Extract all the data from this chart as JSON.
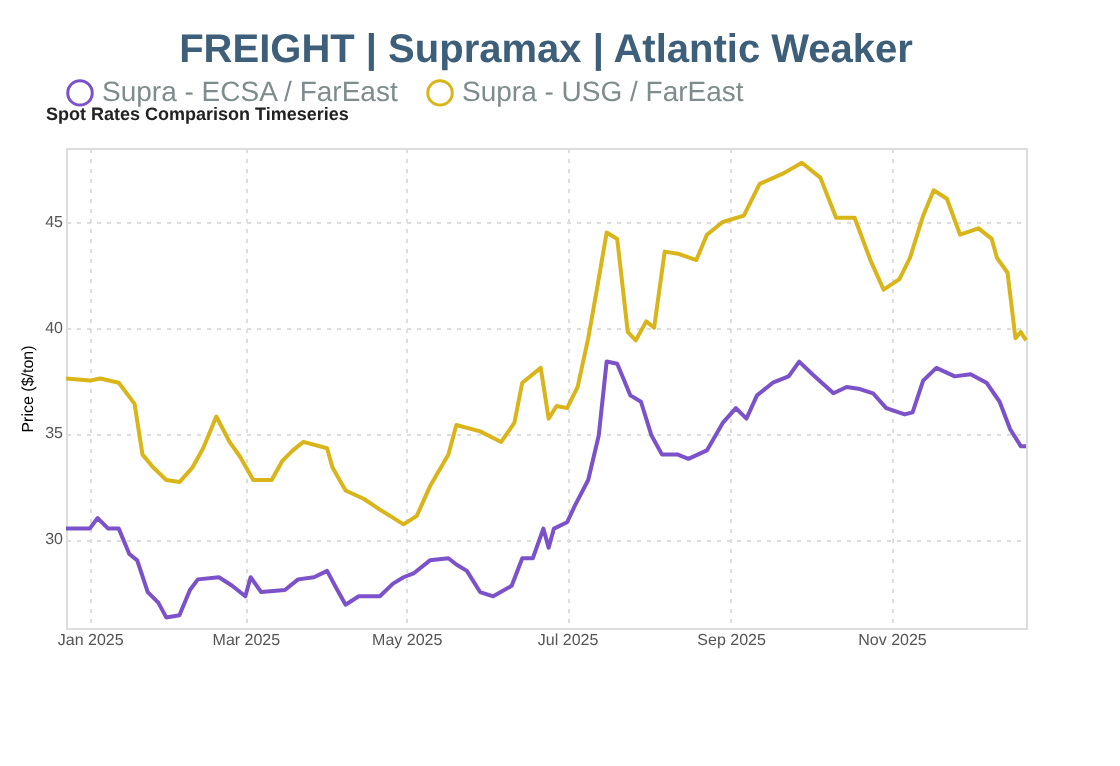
{
  "chart_data": {
    "type": "line",
    "title": "FREIGHT | Supramax | Atlantic Weaker",
    "subtitle": "Spot Rates Comparison Timeseries",
    "ylabel": "Price ($/ton)",
    "xlim": [
      "2024-12-23",
      "2025-12-22"
    ],
    "ylim": [
      25.8,
      48.5
    ],
    "yticks": [
      30,
      35,
      40,
      45
    ],
    "xticks": [
      {
        "value": "2025-01-01",
        "label": "Jan 2025"
      },
      {
        "value": "2025-03-01",
        "label": "Mar 2025"
      },
      {
        "value": "2025-05-01",
        "label": "May 2025"
      },
      {
        "value": "2025-07-01",
        "label": "Jul 2025"
      },
      {
        "value": "2025-09-01",
        "label": "Sep 2025"
      },
      {
        "value": "2025-11-01",
        "label": "Nov 2025"
      }
    ],
    "grid": true,
    "legend": "top",
    "marker": "none",
    "line_style": "solid",
    "series": [
      {
        "name": "Supra - ECSA / FarEast",
        "color": "#7b52c9",
        "x": [
          "2024-12-23",
          "2025-01-01",
          "2025-01-04",
          "2025-01-08",
          "2025-01-12",
          "2025-01-16",
          "2025-01-19",
          "2025-01-23",
          "2025-01-27",
          "2025-01-30",
          "2025-02-04",
          "2025-02-08",
          "2025-02-11",
          "2025-02-19",
          "2025-02-24",
          "2025-03-01",
          "2025-03-03",
          "2025-03-07",
          "2025-03-16",
          "2025-03-21",
          "2025-03-27",
          "2025-04-01",
          "2025-04-04",
          "2025-04-08",
          "2025-04-13",
          "2025-04-21",
          "2025-04-26",
          "2025-04-30",
          "2025-05-04",
          "2025-05-10",
          "2025-05-17",
          "2025-05-20",
          "2025-05-24",
          "2025-05-29",
          "2025-06-03",
          "2025-06-10",
          "2025-06-14",
          "2025-06-18",
          "2025-06-22",
          "2025-06-24",
          "2025-06-26",
          "2025-07-01",
          "2025-07-04",
          "2025-07-09",
          "2025-07-13",
          "2025-07-16",
          "2025-07-20",
          "2025-07-25",
          "2025-07-29",
          "2025-08-02",
          "2025-08-06",
          "2025-08-12",
          "2025-08-16",
          "2025-08-23",
          "2025-08-29",
          "2025-09-03",
          "2025-09-07",
          "2025-09-11",
          "2025-09-17",
          "2025-09-23",
          "2025-09-27",
          "2025-10-02",
          "2025-10-10",
          "2025-10-15",
          "2025-10-20",
          "2025-10-25",
          "2025-10-30",
          "2025-11-06",
          "2025-11-09",
          "2025-11-13",
          "2025-11-18",
          "2025-11-25",
          "2025-12-01",
          "2025-12-07",
          "2025-12-12",
          "2025-12-16",
          "2025-12-20",
          "2025-12-22"
        ],
        "values": [
          30.5,
          30.5,
          31.0,
          30.5,
          30.5,
          29.3,
          29.0,
          27.5,
          27.0,
          26.3,
          26.4,
          27.6,
          28.1,
          28.2,
          27.8,
          27.3,
          28.2,
          27.5,
          27.6,
          28.1,
          28.2,
          28.5,
          27.8,
          26.9,
          27.3,
          27.3,
          27.9,
          28.2,
          28.4,
          29.0,
          29.1,
          28.8,
          28.5,
          27.5,
          27.3,
          27.8,
          29.1,
          29.1,
          30.5,
          29.6,
          30.5,
          30.8,
          31.6,
          32.8,
          34.9,
          38.4,
          38.3,
          36.8,
          36.5,
          34.9,
          34.0,
          34.0,
          33.8,
          34.2,
          35.5,
          36.2,
          35.7,
          36.8,
          37.4,
          37.7,
          38.4,
          37.8,
          36.9,
          37.2,
          37.1,
          36.9,
          36.2,
          35.9,
          36.0,
          37.5,
          38.1,
          37.7,
          37.8,
          37.4,
          36.5,
          35.2,
          34.4,
          34.4
        ]
      },
      {
        "name": "Supra - USG / FarEast",
        "color": "#d9b51a",
        "x": [
          "2024-12-23",
          "2025-01-01",
          "2025-01-05",
          "2025-01-12",
          "2025-01-18",
          "2025-01-21",
          "2025-01-25",
          "2025-01-30",
          "2025-02-04",
          "2025-02-09",
          "2025-02-13",
          "2025-02-18",
          "2025-02-23",
          "2025-02-27",
          "2025-03-04",
          "2025-03-11",
          "2025-03-15",
          "2025-03-19",
          "2025-03-23",
          "2025-04-01",
          "2025-04-03",
          "2025-04-08",
          "2025-04-15",
          "2025-04-21",
          "2025-04-30",
          "2025-05-05",
          "2025-05-10",
          "2025-05-17",
          "2025-05-20",
          "2025-05-29",
          "2025-06-06",
          "2025-06-11",
          "2025-06-14",
          "2025-06-21",
          "2025-06-24",
          "2025-06-27",
          "2025-07-01",
          "2025-07-05",
          "2025-07-09",
          "2025-07-12",
          "2025-07-16",
          "2025-07-20",
          "2025-07-24",
          "2025-07-27",
          "2025-07-31",
          "2025-08-03",
          "2025-08-07",
          "2025-08-12",
          "2025-08-19",
          "2025-08-23",
          "2025-08-29",
          "2025-09-06",
          "2025-09-12",
          "2025-09-21",
          "2025-09-28",
          "2025-10-05",
          "2025-10-11",
          "2025-10-18",
          "2025-10-24",
          "2025-10-29",
          "2025-11-04",
          "2025-11-08",
          "2025-11-13",
          "2025-11-17",
          "2025-11-22",
          "2025-11-27",
          "2025-12-04",
          "2025-12-09",
          "2025-12-11",
          "2025-12-15",
          "2025-12-18",
          "2025-12-20",
          "2025-12-22"
        ],
        "values": [
          37.6,
          37.5,
          37.6,
          37.4,
          36.4,
          34.0,
          33.4,
          32.8,
          32.7,
          33.4,
          34.3,
          35.8,
          34.6,
          33.9,
          32.8,
          32.8,
          33.7,
          34.2,
          34.6,
          34.3,
          33.4,
          32.3,
          31.9,
          31.4,
          30.7,
          31.1,
          32.5,
          34.0,
          35.4,
          35.1,
          34.6,
          35.5,
          37.4,
          38.1,
          35.7,
          36.3,
          36.2,
          37.2,
          39.5,
          41.6,
          44.5,
          44.2,
          39.8,
          39.4,
          40.3,
          40.0,
          43.6,
          43.5,
          43.2,
          44.4,
          45.0,
          45.3,
          46.8,
          47.3,
          47.8,
          47.1,
          45.2,
          45.2,
          43.2,
          41.8,
          42.3,
          43.3,
          45.3,
          46.5,
          46.1,
          44.4,
          44.7,
          44.2,
          43.3,
          42.6,
          39.5,
          39.8,
          39.4
        ]
      }
    ]
  }
}
